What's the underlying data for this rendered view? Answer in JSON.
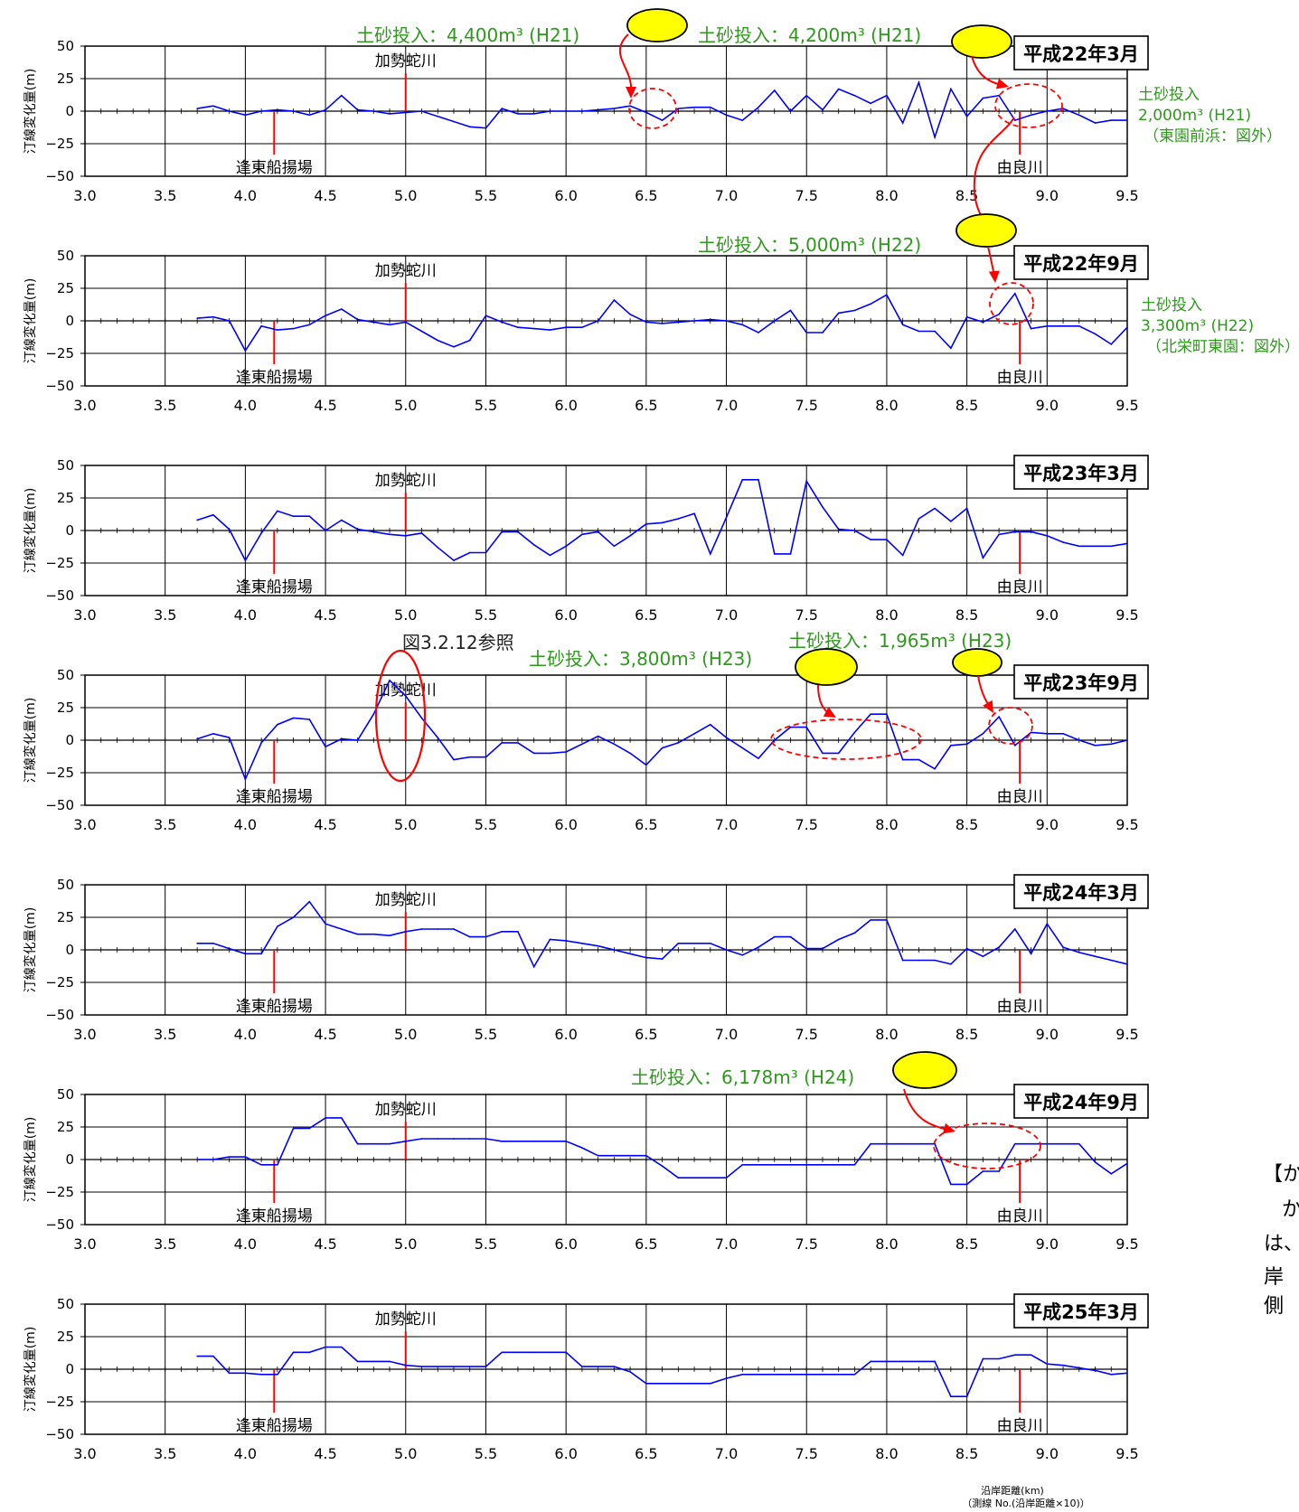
{
  "axis": {
    "xlabel": "沿岸距離(km)",
    "xlabel_sub": "（測線 No.(沿岸距離×10)）"
  },
  "side_note": {
    "lines": [
      "【か",
      "か",
      "は、",
      "岸側"
    ]
  },
  "chart_data": [
    {
      "type": "line",
      "title": "平成22年3月",
      "ylabel": "汀線変化量(m)",
      "xlim": [
        3.0,
        9.5
      ],
      "ylim": [
        -50,
        50
      ],
      "xticks": [
        3.0,
        3.5,
        4.0,
        4.5,
        5.0,
        5.5,
        6.0,
        6.5,
        7.0,
        7.5,
        8.0,
        8.5,
        9.0,
        9.5
      ],
      "yticks": [
        50,
        25,
        0,
        -25,
        -50
      ],
      "grid": true,
      "line_color": "#0000ff",
      "x": [
        3.7,
        3.8,
        3.9,
        4.0,
        4.1,
        4.2,
        4.3,
        4.4,
        4.5,
        4.6,
        4.7,
        4.8,
        4.9,
        5.0,
        5.1,
        5.2,
        5.3,
        5.4,
        5.5,
        5.6,
        5.7,
        5.8,
        5.9,
        6.0,
        6.1,
        6.2,
        6.3,
        6.4,
        6.5,
        6.6,
        6.7,
        6.8,
        6.9,
        7.0,
        7.1,
        7.2,
        7.3,
        7.4,
        7.5,
        7.6,
        7.7,
        7.8,
        7.9,
        8.0,
        8.1,
        8.2,
        8.3,
        8.4,
        8.5,
        8.6,
        8.7,
        8.8,
        8.9,
        9.0,
        9.1,
        9.2,
        9.3,
        9.4,
        9.5
      ],
      "y": [
        2,
        4,
        0,
        -3,
        0,
        1,
        0,
        -3,
        1,
        12,
        1,
        0,
        -2,
        -1,
        0,
        -4,
        -8,
        -12,
        -13,
        2,
        -2,
        -2,
        0,
        0,
        0,
        1,
        2,
        4,
        -1,
        -7,
        2,
        3,
        3,
        -3,
        -7,
        3,
        16,
        0,
        12,
        1,
        17,
        12,
        6,
        12,
        -9,
        22,
        -20,
        17,
        -4,
        10,
        12,
        -7,
        -3,
        0,
        2,
        -3,
        -9,
        -7,
        -7
      ],
      "river_markers": [
        {
          "x": 4.18,
          "label": "逢東船揚場",
          "side": "below"
        },
        {
          "x": 5.0,
          "label": "加勢蛇川",
          "side": "above"
        },
        {
          "x": 8.83,
          "label": "由良川",
          "side": "below"
        }
      ],
      "annotations": [
        {
          "text": "土砂投入：4,400m³ (H21)"
        },
        {
          "text": "土砂投入：4,200m³ (H21)"
        },
        {
          "text_lines": [
            "土砂投入",
            "2,000m³ (H21)",
            "（東園前浜：図外）"
          ]
        }
      ]
    },
    {
      "type": "line",
      "title": "平成22年9月",
      "ylabel": "汀線変化量(m)",
      "xlim": [
        3.0,
        9.5
      ],
      "ylim": [
        -50,
        50
      ],
      "xticks": [
        3.0,
        3.5,
        4.0,
        4.5,
        5.0,
        5.5,
        6.0,
        6.5,
        7.0,
        7.5,
        8.0,
        8.5,
        9.0,
        9.5
      ],
      "yticks": [
        50,
        25,
        0,
        -25,
        -50
      ],
      "grid": true,
      "line_color": "#0000ff",
      "x": [
        3.7,
        3.8,
        3.9,
        4.0,
        4.1,
        4.2,
        4.3,
        4.4,
        4.5,
        4.6,
        4.7,
        4.8,
        4.9,
        5.0,
        5.1,
        5.2,
        5.3,
        5.4,
        5.5,
        5.6,
        5.7,
        5.8,
        5.9,
        6.0,
        6.1,
        6.2,
        6.3,
        6.4,
        6.5,
        6.6,
        6.7,
        6.8,
        6.9,
        7.0,
        7.1,
        7.2,
        7.3,
        7.4,
        7.5,
        7.6,
        7.7,
        7.8,
        7.9,
        8.0,
        8.1,
        8.2,
        8.3,
        8.4,
        8.5,
        8.6,
        8.7,
        8.8,
        8.9,
        9.0,
        9.1,
        9.2,
        9.3,
        9.4,
        9.5
      ],
      "y": [
        2,
        3,
        0,
        -23,
        -4,
        -7,
        -6,
        -3,
        4,
        9,
        1,
        -1,
        -3,
        -1,
        -8,
        -15,
        -20,
        -15,
        4,
        -1,
        -5,
        -6,
        -7,
        -5,
        -5,
        0,
        16,
        5,
        -1,
        -2,
        -1,
        0,
        1,
        0,
        -3,
        -9,
        0,
        8,
        -9,
        -9,
        6,
        8,
        13,
        20,
        -3,
        -8,
        -8,
        -21,
        3,
        -1,
        5,
        21,
        -6,
        -4,
        -4,
        -4,
        -10,
        -18,
        -5
      ],
      "river_markers": [
        {
          "x": 4.18,
          "label": "逢東船揚場",
          "side": "below"
        },
        {
          "x": 5.0,
          "label": "加勢蛇川",
          "side": "above"
        },
        {
          "x": 8.83,
          "label": "由良川",
          "side": "below"
        }
      ],
      "annotations": [
        {
          "text": "土砂投入：5,000m³ (H22)"
        },
        {
          "text_lines": [
            "土砂投入",
            "3,300m³ (H22)",
            "（北栄町東園：図外）"
          ]
        }
      ]
    },
    {
      "type": "line",
      "title": "平成23年3月",
      "ylabel": "汀線変化量(m)",
      "xlim": [
        3.0,
        9.5
      ],
      "ylim": [
        -50,
        50
      ],
      "xticks": [
        3.0,
        3.5,
        4.0,
        4.5,
        5.0,
        5.5,
        6.0,
        6.5,
        7.0,
        7.5,
        8.0,
        8.5,
        9.0,
        9.5
      ],
      "yticks": [
        50,
        25,
        0,
        -25,
        -50
      ],
      "grid": true,
      "line_color": "#0000ff",
      "x": [
        3.7,
        3.8,
        3.9,
        4.0,
        4.1,
        4.2,
        4.3,
        4.4,
        4.5,
        4.6,
        4.7,
        4.8,
        4.9,
        5.0,
        5.1,
        5.2,
        5.3,
        5.4,
        5.5,
        5.6,
        5.7,
        5.8,
        5.9,
        6.0,
        6.1,
        6.2,
        6.3,
        6.4,
        6.5,
        6.6,
        6.7,
        6.8,
        6.9,
        7.0,
        7.1,
        7.2,
        7.3,
        7.4,
        7.5,
        7.6,
        7.7,
        7.8,
        7.9,
        8.0,
        8.1,
        8.2,
        8.3,
        8.4,
        8.5,
        8.6,
        8.7,
        8.8,
        8.9,
        9.0,
        9.1,
        9.2,
        9.3,
        9.4,
        9.5
      ],
      "y": [
        8,
        12,
        1,
        -23,
        -2,
        15,
        11,
        11,
        0,
        8,
        1,
        -1,
        -3,
        -4,
        -2,
        -13,
        -23,
        -17,
        -17,
        -1,
        -1,
        -11,
        -19,
        -12,
        -3,
        -1,
        -12,
        -4,
        5,
        6,
        9,
        13,
        -18,
        10,
        39,
        39,
        -18,
        -18,
        38,
        18,
        1,
        0,
        -7,
        -7,
        -19,
        9,
        17,
        7,
        17,
        -21,
        -3,
        -1,
        -1,
        -4,
        -9,
        -12,
        -12,
        -12,
        -10
      ],
      "river_markers": [
        {
          "x": 4.18,
          "label": "逢東船揚場",
          "side": "below"
        },
        {
          "x": 5.0,
          "label": "加勢蛇川",
          "side": "above"
        },
        {
          "x": 8.83,
          "label": "由良川",
          "side": "below"
        }
      ],
      "annotations": [
        {
          "text": "図3.2.12参照"
        }
      ]
    },
    {
      "type": "line",
      "title": "平成23年9月",
      "ylabel": "汀線変化量(m)",
      "xlim": [
        3.0,
        9.5
      ],
      "ylim": [
        -50,
        50
      ],
      "xticks": [
        3.0,
        3.5,
        4.0,
        4.5,
        5.0,
        5.5,
        6.0,
        6.5,
        7.0,
        7.5,
        8.0,
        8.5,
        9.0,
        9.5
      ],
      "yticks": [
        50,
        25,
        0,
        -25,
        -50
      ],
      "grid": true,
      "line_color": "#0000ff",
      "x": [
        3.7,
        3.8,
        3.9,
        4.0,
        4.1,
        4.2,
        4.3,
        4.4,
        4.5,
        4.6,
        4.7,
        4.8,
        4.9,
        5.0,
        5.1,
        5.2,
        5.3,
        5.4,
        5.5,
        5.6,
        5.7,
        5.8,
        5.9,
        6.0,
        6.1,
        6.2,
        6.3,
        6.4,
        6.5,
        6.6,
        6.7,
        6.8,
        6.9,
        7.0,
        7.1,
        7.2,
        7.3,
        7.4,
        7.5,
        7.6,
        7.7,
        7.8,
        7.9,
        8.0,
        8.1,
        8.2,
        8.3,
        8.4,
        8.5,
        8.6,
        8.7,
        8.8,
        8.9,
        9.0,
        9.1,
        9.2,
        9.3,
        9.4,
        9.5
      ],
      "y": [
        1,
        5,
        2,
        -30,
        -2,
        12,
        17,
        16,
        -5,
        1,
        0,
        20,
        46,
        34,
        17,
        2,
        -15,
        -13,
        -13,
        -2,
        -2,
        -10,
        -10,
        -9,
        -3,
        3,
        -3,
        -10,
        -19,
        -6,
        -2,
        5,
        12,
        2,
        -6,
        -14,
        0,
        10,
        10,
        -10,
        -10,
        6,
        20,
        20,
        -15,
        -15,
        -22,
        -4,
        -3,
        5,
        18,
        -4,
        6,
        5,
        5,
        0,
        -4,
        -3,
        0
      ],
      "river_markers": [
        {
          "x": 4.18,
          "label": "逢東船揚場",
          "side": "below"
        },
        {
          "x": 5.0,
          "label": "加勢蛇川",
          "side": "above"
        },
        {
          "x": 8.83,
          "label": "由良川",
          "side": "below"
        }
      ],
      "annotations": [
        {
          "text": "土砂投入：3,800m³ (H23)"
        },
        {
          "text": "土砂投入：1,965m³ (H23)"
        }
      ]
    },
    {
      "type": "line",
      "title": "平成24年3月",
      "ylabel": "汀線変化量(m)",
      "xlim": [
        3.0,
        9.5
      ],
      "ylim": [
        -50,
        50
      ],
      "xticks": [
        3.0,
        3.5,
        4.0,
        4.5,
        5.0,
        5.5,
        6.0,
        6.5,
        7.0,
        7.5,
        8.0,
        8.5,
        9.0,
        9.5
      ],
      "yticks": [
        50,
        25,
        0,
        -25,
        -50
      ],
      "grid": true,
      "line_color": "#0000ff",
      "x": [
        3.7,
        3.8,
        3.9,
        4.0,
        4.1,
        4.2,
        4.3,
        4.4,
        4.5,
        4.6,
        4.7,
        4.8,
        4.9,
        5.0,
        5.1,
        5.2,
        5.3,
        5.4,
        5.5,
        5.6,
        5.7,
        5.8,
        5.9,
        6.0,
        6.1,
        6.2,
        6.3,
        6.4,
        6.5,
        6.6,
        6.7,
        6.8,
        6.9,
        7.0,
        7.1,
        7.2,
        7.3,
        7.4,
        7.5,
        7.6,
        7.7,
        7.8,
        7.9,
        8.0,
        8.1,
        8.2,
        8.3,
        8.4,
        8.5,
        8.6,
        8.7,
        8.8,
        8.9,
        9.0,
        9.1,
        9.2,
        9.3,
        9.4,
        9.5
      ],
      "y": [
        5,
        5,
        1,
        -3,
        -3,
        18,
        25,
        37,
        20,
        16,
        12,
        12,
        11,
        14,
        16,
        16,
        16,
        10,
        10,
        14,
        14,
        -13,
        8,
        7,
        5,
        3,
        0,
        -3,
        -6,
        -7,
        5,
        5,
        5,
        0,
        -4,
        2,
        10,
        10,
        1,
        1,
        8,
        13,
        23,
        23,
        -8,
        -8,
        -8,
        -11,
        1,
        -5,
        2,
        16,
        -3,
        20,
        2,
        -2,
        -5,
        -8,
        -11
      ],
      "river_markers": [
        {
          "x": 4.18,
          "label": "逢東船揚場",
          "side": "below"
        },
        {
          "x": 5.0,
          "label": "加勢蛇川",
          "side": "above"
        },
        {
          "x": 8.83,
          "label": "由良川",
          "side": "below"
        }
      ],
      "annotations": []
    },
    {
      "type": "line",
      "title": "平成24年9月",
      "ylabel": "汀線変化量(m)",
      "xlim": [
        3.0,
        9.5
      ],
      "ylim": [
        -50,
        50
      ],
      "xticks": [
        3.0,
        3.5,
        4.0,
        4.5,
        5.0,
        5.5,
        6.0,
        6.5,
        7.0,
        7.5,
        8.0,
        8.5,
        9.0,
        9.5
      ],
      "yticks": [
        50,
        25,
        0,
        -25,
        -50
      ],
      "grid": true,
      "line_color": "#0000ff",
      "x": [
        3.7,
        3.8,
        3.9,
        4.0,
        4.1,
        4.2,
        4.3,
        4.4,
        4.5,
        4.6,
        4.7,
        4.8,
        4.9,
        5.0,
        5.1,
        5.2,
        5.3,
        5.4,
        5.5,
        5.6,
        5.7,
        5.8,
        5.9,
        6.0,
        6.1,
        6.2,
        6.3,
        6.4,
        6.5,
        6.6,
        6.7,
        6.8,
        6.9,
        7.0,
        7.1,
        7.2,
        7.3,
        7.4,
        7.5,
        7.6,
        7.7,
        7.8,
        7.9,
        8.0,
        8.1,
        8.2,
        8.3,
        8.4,
        8.5,
        8.6,
        8.7,
        8.8,
        8.9,
        9.0,
        9.1,
        9.2,
        9.3,
        9.4,
        9.5
      ],
      "y": [
        0,
        0,
        2,
        2,
        -4,
        -4,
        24,
        24,
        32,
        32,
        12,
        12,
        12,
        14,
        16,
        16,
        16,
        16,
        16,
        14,
        14,
        14,
        14,
        14,
        9,
        3,
        3,
        3,
        3,
        -5,
        -14,
        -14,
        -14,
        -14,
        -4,
        -4,
        -4,
        -4,
        -4,
        -4,
        -4,
        -4,
        12,
        12,
        12,
        12,
        12,
        -19,
        -19,
        -9,
        -9,
        12,
        12,
        12,
        12,
        12,
        -2,
        -11,
        -3
      ],
      "river_markers": [
        {
          "x": 4.18,
          "label": "逢東船揚場",
          "side": "below"
        },
        {
          "x": 5.0,
          "label": "加勢蛇川",
          "side": "above"
        },
        {
          "x": 8.83,
          "label": "由良川",
          "side": "below"
        }
      ],
      "annotations": [
        {
          "text": "土砂投入：6,178m³ (H24)"
        }
      ]
    },
    {
      "type": "line",
      "title": "平成25年3月",
      "ylabel": "汀線変化量(m)",
      "xlim": [
        3.0,
        9.5
      ],
      "ylim": [
        -50,
        50
      ],
      "xticks": [
        3.0,
        3.5,
        4.0,
        4.5,
        5.0,
        5.5,
        6.0,
        6.5,
        7.0,
        7.5,
        8.0,
        8.5,
        9.0,
        9.5
      ],
      "yticks": [
        50,
        25,
        0,
        -25,
        -50
      ],
      "grid": true,
      "line_color": "#0000ff",
      "x": [
        3.7,
        3.8,
        3.9,
        4.0,
        4.1,
        4.2,
        4.3,
        4.4,
        4.5,
        4.6,
        4.7,
        4.8,
        4.9,
        5.0,
        5.1,
        5.2,
        5.3,
        5.4,
        5.5,
        5.6,
        5.7,
        5.8,
        5.9,
        6.0,
        6.1,
        6.2,
        6.3,
        6.4,
        6.5,
        6.6,
        6.7,
        6.8,
        6.9,
        7.0,
        7.1,
        7.2,
        7.3,
        7.4,
        7.5,
        7.6,
        7.7,
        7.8,
        7.9,
        8.0,
        8.1,
        8.2,
        8.3,
        8.4,
        8.5,
        8.6,
        8.7,
        8.8,
        8.9,
        9.0,
        9.1,
        9.2,
        9.3,
        9.4,
        9.5
      ],
      "y": [
        10,
        10,
        -3,
        -3,
        -4,
        -4,
        13,
        13,
        17,
        17,
        6,
        6,
        6,
        3,
        2,
        2,
        2,
        2,
        2,
        13,
        13,
        13,
        13,
        13,
        2,
        2,
        2,
        -2,
        -11,
        -11,
        -11,
        -11,
        -11,
        -7,
        -4,
        -4,
        -4,
        -4,
        -4,
        -4,
        -4,
        -4,
        6,
        6,
        6,
        6,
        6,
        -21,
        -21,
        8,
        8,
        11,
        11,
        4,
        3,
        1,
        -1,
        -4,
        -3
      ],
      "river_markers": [
        {
          "x": 4.18,
          "label": "逢東船揚場",
          "side": "below"
        },
        {
          "x": 5.0,
          "label": "加勢蛇川",
          "side": "above"
        },
        {
          "x": 8.83,
          "label": "由良川",
          "side": "below"
        }
      ],
      "annotations": []
    }
  ]
}
